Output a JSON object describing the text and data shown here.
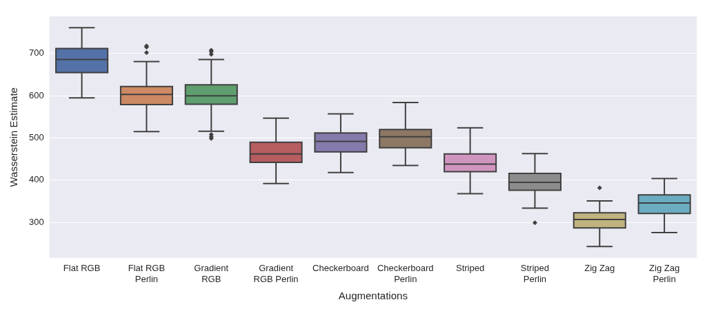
{
  "chart_data": {
    "type": "box",
    "xlabel": "Augmentations",
    "ylabel": "Wasserstein Estimate",
    "categories": [
      "Flat RGB",
      "Flat RGB\nPerlin",
      "Gradient\nRGB",
      "Gradient\nRGB Perlin",
      "Checkerboard",
      "Checkerboard\nPerlin",
      "Striped",
      "Striped\nPerlin",
      "Zig Zag",
      "Zig Zag\nPerlin"
    ],
    "colors": [
      "#5471a8",
      "#cc8963",
      "#5f9e6e",
      "#b55d60",
      "#857aab",
      "#8d7866",
      "#d095bf",
      "#8c8c8c",
      "#c1b37f",
      "#6bacc0"
    ],
    "boxes": [
      {
        "low": 595,
        "q1": 655,
        "median": 686,
        "q3": 712,
        "high": 761
      },
      {
        "low": 515,
        "q1": 579,
        "median": 603,
        "q3": 622,
        "high": 681,
        "outliers": [
          718,
          715,
          702
        ]
      },
      {
        "low": 516,
        "q1": 580,
        "median": 600,
        "q3": 626,
        "high": 686,
        "outliers": [
          708,
          704,
          698,
          508,
          503,
          499
        ]
      },
      {
        "low": 392,
        "q1": 442,
        "median": 462,
        "q3": 490,
        "high": 547
      },
      {
        "low": 418,
        "q1": 467,
        "median": 492,
        "q3": 512,
        "high": 557
      },
      {
        "low": 435,
        "q1": 477,
        "median": 503,
        "q3": 520,
        "high": 584
      },
      {
        "low": 368,
        "q1": 420,
        "median": 438,
        "q3": 462,
        "high": 524
      },
      {
        "low": 334,
        "q1": 376,
        "median": 395,
        "q3": 416,
        "high": 463,
        "outliers": [
          299
        ]
      },
      {
        "low": 243,
        "q1": 287,
        "median": 307,
        "q3": 323,
        "high": 351,
        "outliers": [
          382
        ]
      },
      {
        "low": 276,
        "q1": 321,
        "median": 346,
        "q3": 365,
        "high": 404
      }
    ],
    "ylim": [
      216,
      788
    ],
    "yticks": [
      300,
      400,
      500,
      600,
      700
    ],
    "grid": "y",
    "legend": false
  }
}
